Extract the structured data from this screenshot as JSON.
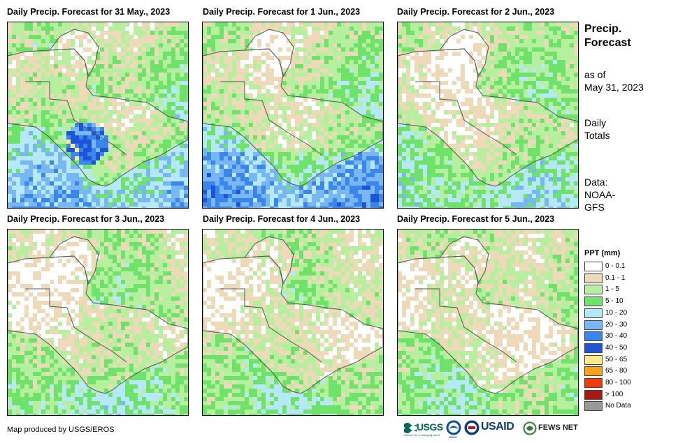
{
  "panels": [
    {
      "title": "Daily Precip. Forecast for 31 May., 2023",
      "day": 0
    },
    {
      "title": "Daily Precip. Forecast for 1 Jun., 2023",
      "day": 1
    },
    {
      "title": "Daily Precip. Forecast for 2 Jun., 2023",
      "day": 2
    },
    {
      "title": "Daily Precip. Forecast for 3 Jun., 2023",
      "day": 3
    },
    {
      "title": "Daily Precip. Forecast for 4 Jun., 2023",
      "day": 4
    },
    {
      "title": "Daily Precip. Forecast for 5 Jun., 2023",
      "day": 5
    }
  ],
  "side": {
    "title": "Precip. Forecast",
    "as_of": "as of",
    "date": "May 31, 2023",
    "totals_line1": "Daily",
    "totals_line2": "Totals",
    "data_line1": "Data:",
    "data_line2": "NOAA-",
    "data_line3": "GFS"
  },
  "legend": {
    "title": "PPT (mm)",
    "items": [
      {
        "label": "0 - 0.1",
        "color": "#ffffff"
      },
      {
        "label": "0.1 - 1",
        "color": "#eed9b8"
      },
      {
        "label": "1 - 5",
        "color": "#b6ef9e"
      },
      {
        "label": "5 - 10",
        "color": "#6fe26a"
      },
      {
        "label": "10 - 20",
        "color": "#b5e8f8"
      },
      {
        "label": "20 - 30",
        "color": "#77b8f4"
      },
      {
        "label": "30 - 40",
        "color": "#3a86eb"
      },
      {
        "label": "40 - 50",
        "color": "#1c55d8"
      },
      {
        "label": "50 - 65",
        "color": "#fde88a"
      },
      {
        "label": "65 - 80",
        "color": "#fba11a"
      },
      {
        "label": "80 - 100",
        "color": "#f23a06"
      },
      {
        "label": "> 100",
        "color": "#a61a12"
      },
      {
        "label": "No Data",
        "color": "#999999"
      }
    ]
  },
  "credit": "Map produced by USGS/EROS",
  "logos": {
    "usgs": "USGS",
    "usgs_tagline": "science for a changing world",
    "noaa": "NOAA",
    "usaid": "USAID",
    "fewsnet": "FEWS NET"
  }
}
